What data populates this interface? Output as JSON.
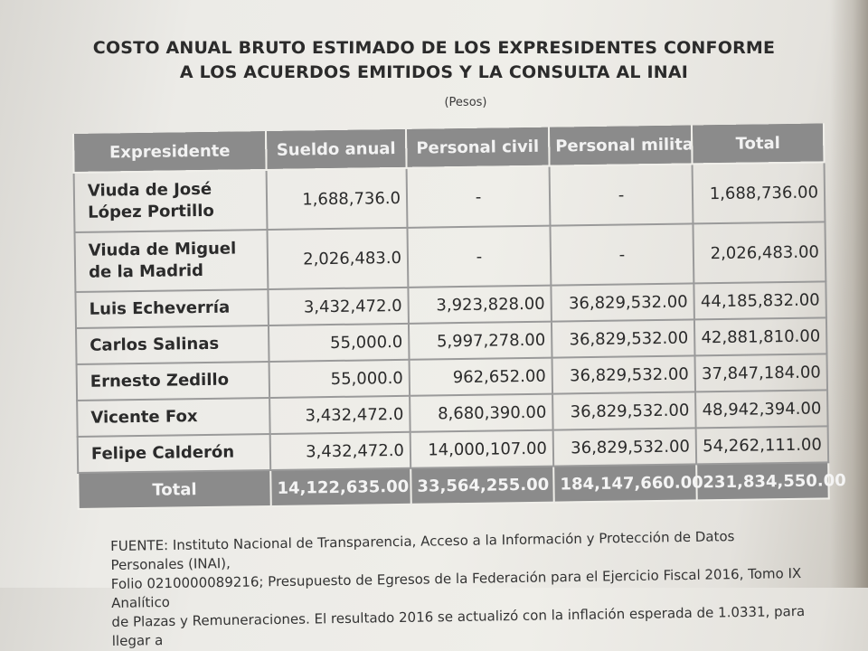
{
  "title_lines": [
    "COSTO ANUAL BRUTO ESTIMADO DE LOS EXPRESIDENTES CONFORME",
    "A LOS ACUERDOS EMITIDOS Y LA CONSULTA AL INAI"
  ],
  "subtitle": "(Pesos)",
  "table": {
    "headers": [
      "Expresidente",
      "Sueldo anual",
      "Personal civil",
      "Personal militar",
      "Total"
    ],
    "rows": [
      {
        "name": "Viuda de José López Portillo",
        "sueldo": "1,688,736.0",
        "civil": "-",
        "militar": "-",
        "total": "1,688,736.00"
      },
      {
        "name": "Viuda de Miguel de la Madrid",
        "sueldo": "2,026,483.0",
        "civil": "-",
        "militar": "-",
        "total": "2,026,483.00"
      },
      {
        "name": "Luis Echeverría",
        "sueldo": "3,432,472.0",
        "civil": "3,923,828.00",
        "militar": "36,829,532.00",
        "total": "44,185,832.00"
      },
      {
        "name": "Carlos Salinas",
        "sueldo": "55,000.0",
        "civil": "5,997,278.00",
        "militar": "36,829,532.00",
        "total": "42,881,810.00"
      },
      {
        "name": "Ernesto Zedillo",
        "sueldo": "55,000.0",
        "civil": "962,652.00",
        "militar": "36,829,532.00",
        "total": "37,847,184.00"
      },
      {
        "name": "Vicente Fox",
        "sueldo": "3,432,472.0",
        "civil": "8,680,390.00",
        "militar": "36,829,532.00",
        "total": "48,942,394.00"
      },
      {
        "name": "Felipe Calderón",
        "sueldo": "3,432,472.0",
        "civil": "14,000,107.00",
        "militar": "36,829,532.00",
        "total": "54,262,111.00"
      }
    ],
    "totals": {
      "label": "Total",
      "sueldo": "14,122,635.00",
      "civil": "33,564,255.00",
      "militar": "184,147,660.00",
      "total": "231,834,550.00"
    }
  },
  "footer_lines": [
    "FUENTE: Instituto Nacional de Transparencia, Acceso a la Información y Protección de Datos Personales (INAI),",
    "Folio 0210000089216; Presupuesto de Egresos de la Federación para el Ejercicio Fiscal 2016, Tomo IX Analítico",
    "de Plazas y Remuneraciones. El resultado 2016 se actualizó con la inflación esperada de 1.0331, para llegar a"
  ]
}
